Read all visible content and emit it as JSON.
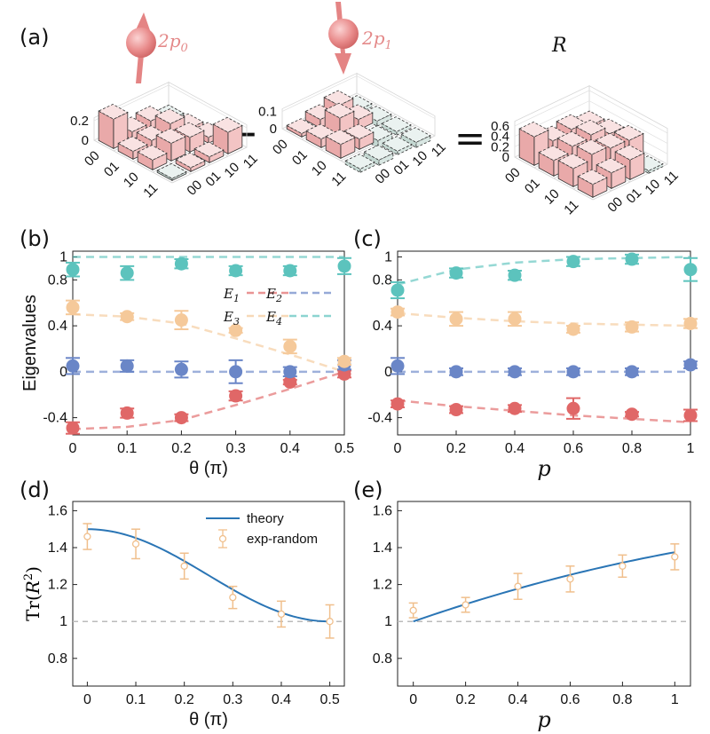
{
  "panels": {
    "a": "(a)",
    "b": "(b)",
    "c": "(c)",
    "d": "(d)",
    "e": "(e)"
  },
  "panel_a": {
    "term1_label": "2p",
    "term1_sub": "0",
    "term2_label": "2p",
    "term2_sub": "1",
    "result_label": "R",
    "minus_sign": "−",
    "equals_sign": "=",
    "basis_ticks": [
      "00",
      "01",
      "10",
      "11"
    ],
    "plot1_zticks": [
      "0.2",
      "0"
    ],
    "plot2_zticks": [
      "0.1",
      "0"
    ],
    "plot3_zticks": [
      "0.6",
      "0.4",
      "0.2",
      "0"
    ],
    "plot1_matrix": [
      [
        0.3,
        0.08,
        0.1,
        0.02
      ],
      [
        0.08,
        0.1,
        0.18,
        0.04
      ],
      [
        0.1,
        0.18,
        0.15,
        0.06
      ],
      [
        0.02,
        0.04,
        0.06,
        0.22
      ]
    ],
    "plot2_matrix": [
      [
        0.02,
        0.05,
        0.08,
        -0.02
      ],
      [
        0.05,
        0.12,
        0.06,
        -0.03
      ],
      [
        0.08,
        0.06,
        -0.04,
        -0.02
      ],
      [
        -0.02,
        -0.03,
        -0.02,
        -0.03
      ]
    ],
    "plot3_matrix": [
      [
        0.55,
        0.3,
        0.35,
        0.25
      ],
      [
        0.3,
        0.4,
        0.45,
        0.3
      ],
      [
        0.35,
        0.45,
        0.4,
        0.38
      ],
      [
        0.25,
        0.3,
        0.38,
        -0.05
      ]
    ]
  },
  "chart_data": [
    {
      "id": "b",
      "type": "scatter",
      "ylabel": "Eigenvalues",
      "xlabel": "θ (π)",
      "xlim": [
        0,
        0.5
      ],
      "ylim": [
        -0.55,
        1.05
      ],
      "xticks": [
        "0",
        "0.1",
        "0.2",
        "0.3",
        "0.4",
        "0.5"
      ],
      "yticks": [
        "-0.4",
        "0",
        "0.4",
        "0.8",
        "1"
      ],
      "ytick_values": [
        -0.4,
        0,
        0.4,
        0.8,
        1
      ],
      "legend": [
        "E",
        "E",
        "E",
        "E"
      ],
      "legend_subs": [
        "1",
        "2",
        "3",
        "4"
      ],
      "x": [
        0,
        0.1,
        0.2,
        0.3,
        0.4,
        0.5
      ],
      "series": [
        {
          "name": "E1",
          "color": "#e06767",
          "values": [
            -0.49,
            -0.36,
            -0.4,
            -0.21,
            -0.09,
            -0.02
          ],
          "errors": [
            0.05,
            0.04,
            0.03,
            0.04,
            0.02,
            0.03
          ],
          "theory": [
            -0.5,
            -0.48,
            -0.42,
            -0.29,
            -0.15,
            0.0
          ]
        },
        {
          "name": "E2",
          "color": "#6a86c7",
          "values": [
            0.05,
            0.05,
            0.02,
            0.0,
            0.0,
            0.06
          ],
          "errors": [
            0.07,
            0.05,
            0.07,
            0.1,
            0.04,
            0.04
          ],
          "theory": [
            0,
            0,
            0,
            0,
            0,
            0
          ]
        },
        {
          "name": "E3",
          "color": "#f5c99a",
          "values": [
            0.56,
            0.48,
            0.45,
            0.36,
            0.22,
            0.09
          ],
          "errors": [
            0.06,
            0.03,
            0.08,
            0.02,
            0.06,
            0.03
          ],
          "theory": [
            0.5,
            0.48,
            0.42,
            0.29,
            0.15,
            0.0
          ]
        },
        {
          "name": "E4",
          "color": "#5cc3bd",
          "values": [
            0.89,
            0.86,
            0.94,
            0.88,
            0.88,
            0.92
          ],
          "errors": [
            0.06,
            0.06,
            0.04,
            0.04,
            0.04,
            0.07
          ],
          "theory": [
            1,
            1,
            1,
            1,
            1,
            1
          ]
        }
      ]
    },
    {
      "id": "c",
      "type": "scatter",
      "xlabel": "p",
      "xlim": [
        0,
        1
      ],
      "ylim": [
        -0.55,
        1.05
      ],
      "xticks": [
        "0",
        "0.2",
        "0.4",
        "0.6",
        "0.8",
        "1"
      ],
      "yticks": [
        "-0.4",
        "0",
        "0.4",
        "0.8",
        "1"
      ],
      "ytick_values": [
        -0.4,
        0,
        0.4,
        0.8,
        1
      ],
      "x": [
        0,
        0.2,
        0.4,
        0.6,
        0.8,
        1
      ],
      "series": [
        {
          "name": "E1",
          "color": "#e06767",
          "values": [
            -0.28,
            -0.33,
            -0.32,
            -0.32,
            -0.37,
            -0.38
          ],
          "errors": [
            0.03,
            0.03,
            0.03,
            0.09,
            0.02,
            0.05
          ],
          "theory": [
            -0.25,
            -0.3,
            -0.34,
            -0.38,
            -0.41,
            -0.44
          ]
        },
        {
          "name": "E2",
          "color": "#6a86c7",
          "values": [
            0.05,
            0.0,
            0.0,
            0.0,
            0.0,
            0.06
          ],
          "errors": [
            0.07,
            0.03,
            0.03,
            0.03,
            0.03,
            0.03
          ],
          "theory": [
            0,
            0,
            0,
            0,
            0,
            0
          ]
        },
        {
          "name": "E3",
          "color": "#f5c99a",
          "values": [
            0.52,
            0.46,
            0.46,
            0.37,
            0.39,
            0.42
          ],
          "errors": [
            0.03,
            0.06,
            0.06,
            0.03,
            0.04,
            0.04
          ],
          "theory": [
            0.51,
            0.47,
            0.44,
            0.42,
            0.41,
            0.4
          ]
        },
        {
          "name": "E4",
          "color": "#5cc3bd",
          "values": [
            0.71,
            0.86,
            0.84,
            0.96,
            0.98,
            0.89
          ],
          "errors": [
            0.07,
            0.04,
            0.04,
            0.04,
            0.04,
            0.1
          ],
          "theory": [
            0.76,
            0.89,
            0.95,
            0.98,
            0.99,
            1.0
          ]
        }
      ]
    },
    {
      "id": "d",
      "type": "line",
      "ylabel": "Tr(R²)",
      "ylabel_fn": "Tr(",
      "ylabel_var": "R",
      "ylabel_sup": "2",
      "ylabel_close": ")",
      "xlabel": "θ (π)",
      "xlim": [
        -0.03,
        0.53
      ],
      "ylim": [
        0.65,
        1.65
      ],
      "xticks": [
        "0",
        "0.1",
        "0.2",
        "0.3",
        "0.4",
        "0.5"
      ],
      "yticks": [
        "0.8",
        "1",
        "1.2",
        "1.4",
        "1.6"
      ],
      "ytick_values": [
        0.8,
        1.0,
        1.2,
        1.4,
        1.6
      ],
      "legend": [
        "theory",
        "exp-random"
      ],
      "x": [
        0,
        0.1,
        0.2,
        0.3,
        0.4,
        0.5
      ],
      "exp": {
        "name": "exp-random",
        "color": "#f0bf8c",
        "values": [
          1.46,
          1.42,
          1.3,
          1.13,
          1.04,
          1.0
        ],
        "errors": [
          0.07,
          0.08,
          0.07,
          0.06,
          0.07,
          0.09
        ]
      },
      "theory": {
        "name": "theory",
        "color": "#2a75b5",
        "function": "1.25 + 0.25*cos(2*pi*theta)"
      },
      "baseline": 1.0
    },
    {
      "id": "e",
      "type": "line",
      "xlabel": "p",
      "xlim": [
        -0.06,
        1.06
      ],
      "ylim": [
        0.65,
        1.65
      ],
      "xticks": [
        "0",
        "0.2",
        "0.4",
        "0.6",
        "0.8",
        "1"
      ],
      "yticks": [
        "0.8",
        "1",
        "1.2",
        "1.4",
        "1.6"
      ],
      "ytick_values": [
        0.8,
        1.0,
        1.2,
        1.4,
        1.6
      ],
      "x": [
        0,
        0.2,
        0.4,
        0.6,
        0.8,
        1
      ],
      "exp": {
        "name": "exp-random",
        "color": "#f0bf8c",
        "values": [
          1.06,
          1.09,
          1.19,
          1.23,
          1.3,
          1.35
        ],
        "errors": [
          0.04,
          0.04,
          0.07,
          0.07,
          0.06,
          0.07
        ]
      },
      "theory": {
        "name": "theory",
        "color": "#2a75b5",
        "points": [
          [
            0,
            1.0
          ],
          [
            0.2,
            1.1
          ],
          [
            0.4,
            1.19
          ],
          [
            0.6,
            1.26
          ],
          [
            0.8,
            1.32
          ],
          [
            1.0,
            1.375
          ]
        ]
      },
      "baseline": 1.0
    }
  ]
}
